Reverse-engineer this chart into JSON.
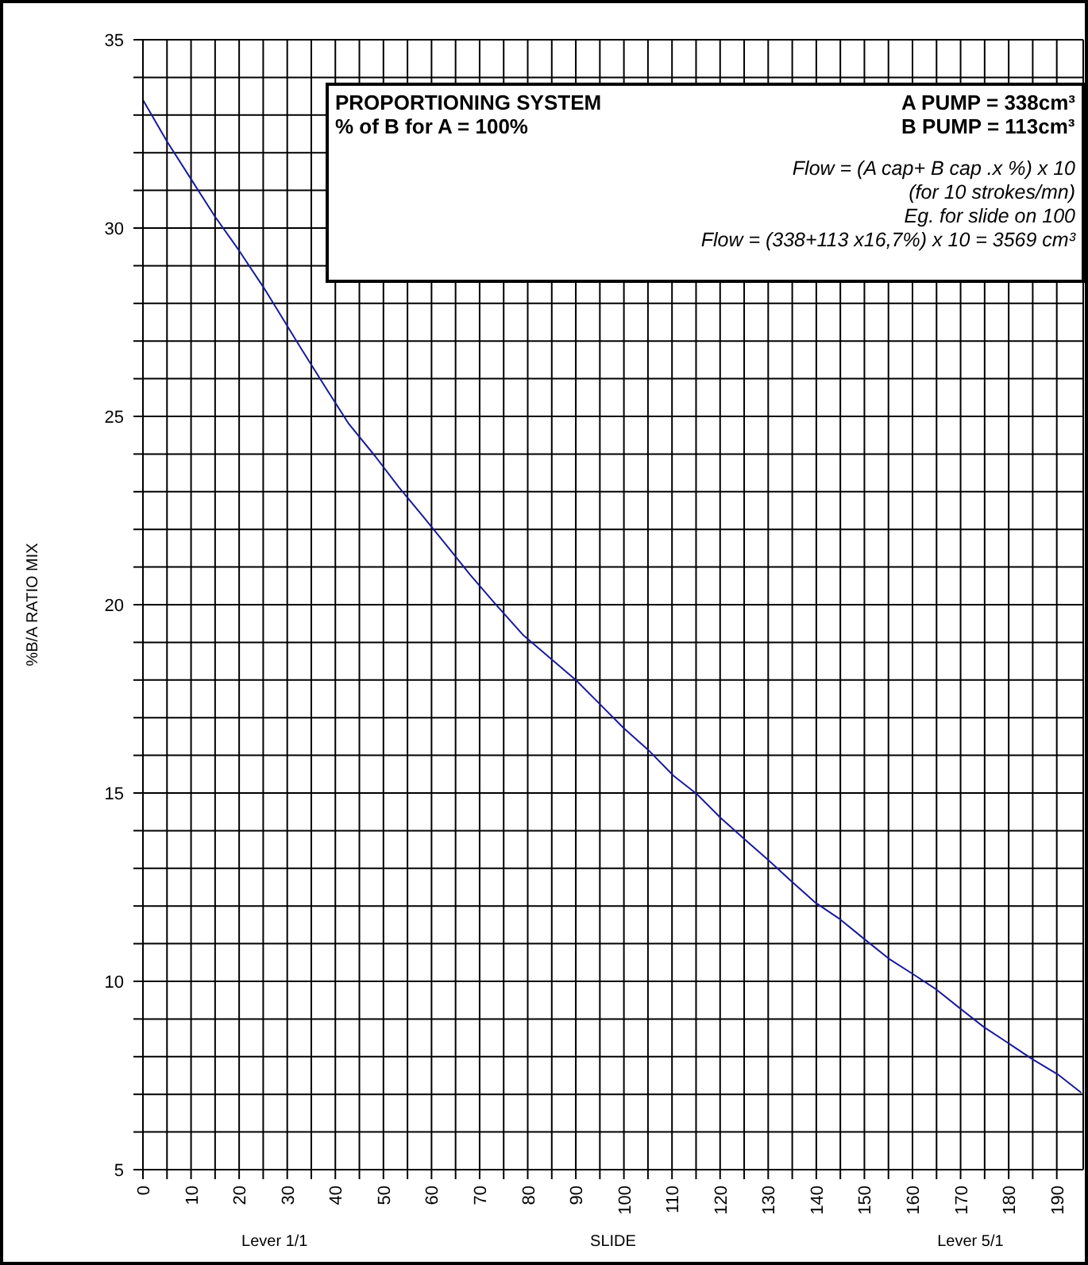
{
  "chart_data": {
    "type": "line",
    "title": "PROPORTIONING SYSTEM",
    "subtitle": "% of B for A = 100%",
    "xlabel": "SLIDE",
    "ylabel": "%B/A RATIO MIX",
    "annotations": [
      "A PUMP = 338cm³",
      "B PUMP = 113cm³",
      "Flow = (A cap+ B cap .x %) x 10",
      "(for 10 strokes/mn)",
      "Eg. for slide on 100",
      "Flow = (338+113 x16,7%) x 10 = 3569 cm³",
      "Lever 1/1",
      "Lever 5/1"
    ],
    "series": [
      {
        "color": "#1a1a9c",
        "x": [
          0,
          5,
          10,
          15,
          20,
          25.2,
          32.9,
          37.8,
          42.8,
          48.3,
          53.2,
          58.2,
          63.1,
          68,
          73.2,
          79,
          90,
          95,
          99.9,
          105.4,
          110.3,
          115.2,
          120.1,
          125,
          130,
          134.9,
          139.8,
          144.7,
          150.2,
          155.1,
          160,
          165,
          169.9,
          174.8,
          179.8,
          184.7,
          190.2,
          195.1
        ],
        "values": [
          33.4,
          32.3,
          31.3,
          30.3,
          29.4,
          28.4,
          26.8,
          25.8,
          24.8,
          23.94,
          23.12,
          22.35,
          21.58,
          20.8,
          20.03,
          19.2,
          18.0,
          17.36,
          16.73,
          16.1,
          15.46,
          14.97,
          14.34,
          13.78,
          13.22,
          12.65,
          12.09,
          11.67,
          11.1,
          10.6,
          10.2,
          9.78,
          9.28,
          8.79,
          8.37,
          7.95,
          7.53,
          7.04
        ]
      }
    ],
    "xlim": [
      0,
      195.5
    ],
    "xticks": [
      0,
      {
        "value": 5,
        "label": null
      },
      10,
      {
        "value": 15,
        "label": null
      },
      20,
      {
        "value": 25,
        "label": null
      },
      30,
      {
        "value": 35,
        "label": null
      },
      40,
      {
        "value": 45,
        "label": null
      },
      50,
      {
        "value": 55,
        "label": null
      },
      60,
      {
        "value": 65,
        "label": null
      },
      70,
      {
        "value": 75,
        "label": null
      },
      80,
      {
        "value": 85,
        "label": null
      },
      90,
      {
        "value": 95,
        "label": null
      },
      100,
      {
        "value": 105,
        "label": null
      },
      110,
      {
        "value": 115,
        "label": null
      },
      120,
      {
        "value": 125,
        "label": null
      },
      130,
      {
        "value": 135,
        "label": null
      },
      140,
      {
        "value": 145,
        "label": null
      },
      150,
      {
        "value": 155,
        "label": null
      },
      160,
      {
        "value": 165,
        "label": null
      },
      170,
      {
        "value": 175,
        "label": null
      },
      180,
      {
        "value": 185,
        "label": null
      },
      190
    ],
    "ylim": [
      5,
      35
    ],
    "yticks": [
      5,
      {
        "value": 6,
        "label": null
      },
      {
        "value": 7,
        "label": null
      },
      {
        "value": 8,
        "label": null
      },
      {
        "value": 9,
        "label": null
      },
      10,
      {
        "value": 11,
        "label": null
      },
      {
        "value": 12,
        "label": null
      },
      {
        "value": 13,
        "label": null
      },
      {
        "value": 14,
        "label": null
      },
      15,
      {
        "value": 16,
        "label": null
      },
      {
        "value": 17,
        "label": null
      },
      {
        "value": 18,
        "label": null
      },
      {
        "value": 19,
        "label": null
      },
      20,
      {
        "value": 21,
        "label": null
      },
      {
        "value": 22,
        "label": null
      },
      {
        "value": 23,
        "label": null
      },
      {
        "value": 24,
        "label": null
      },
      25,
      {
        "value": 26,
        "label": null
      },
      {
        "value": 27,
        "label": null
      },
      {
        "value": 28,
        "label": null
      },
      {
        "value": 29,
        "label": null
      },
      30,
      {
        "value": 31,
        "label": null
      },
      {
        "value": 32,
        "label": null
      },
      {
        "value": 33,
        "label": null
      },
      {
        "value": 34,
        "label": null
      },
      35
    ],
    "grid": true,
    "marker": "none",
    "line_style": "solid",
    "legend": false
  }
}
